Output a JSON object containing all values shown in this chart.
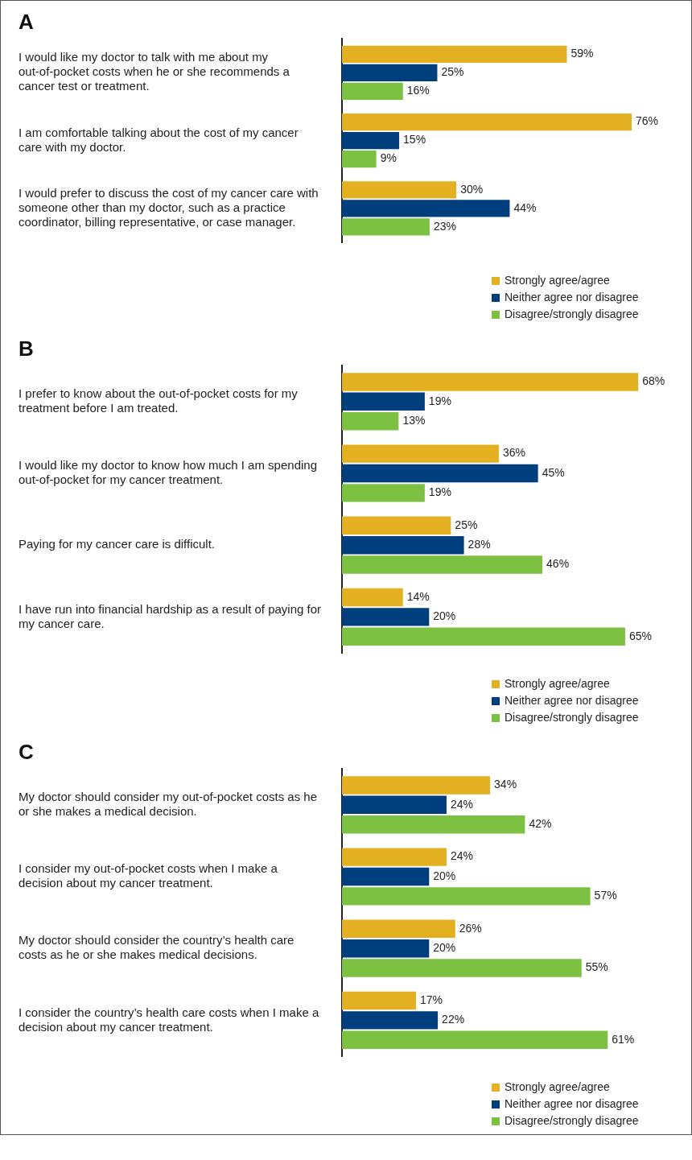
{
  "chart_data": [
    {
      "type": "bar",
      "orientation": "horizontal",
      "title": "A",
      "categories": [
        "I would like my doctor to talk with me about my out-of-pocket costs when he or she recommends a cancer test or treatment.",
        "I am comfortable talking about the cost of my cancer care with my doctor.",
        "I would prefer to discuss the cost of my cancer care with someone other than my doctor, such as a practice coordinator, billing representative, or case manager."
      ],
      "tick_labels": "y",
      "grid": false,
      "legend": "bottom right",
      "series": [
        {
          "name": "Strongly agree/agree",
          "color": "#e3b022",
          "values": [
            59,
            76,
            30
          ],
          "value_labels": [
            "59%",
            "76%",
            "30%"
          ]
        },
        {
          "name": "Neither agree nor disagree",
          "color": "#003f7d",
          "values": [
            25,
            15,
            44
          ],
          "value_labels": [
            "25%",
            "15%",
            "44%"
          ]
        },
        {
          "name": "Disagree/strongly disagree",
          "color": "#7dc142",
          "values": [
            16,
            9,
            23
          ],
          "value_labels": [
            "16%",
            "9%",
            "23%"
          ]
        }
      ]
    },
    {
      "type": "bar",
      "orientation": "horizontal",
      "title": "B",
      "categories": [
        "I prefer to know about the out-of-pocket costs for my treatment before I am treated.",
        "I would like my doctor to know how much I am spending out-of-pocket for my cancer treatment.",
        "Paying for my cancer care is difficult.",
        "I have run into financial hardship as a result of paying for my cancer care."
      ],
      "tick_labels": "y",
      "grid": false,
      "legend": "bottom right",
      "series": [
        {
          "name": "Strongly agree/agree",
          "color": "#e3b022",
          "values": [
            68,
            36,
            25,
            14
          ],
          "value_labels": [
            "68%",
            "36%",
            "25%",
            "14%"
          ]
        },
        {
          "name": "Neither agree nor disagree",
          "color": "#003f7d",
          "values": [
            19,
            45,
            28,
            20
          ],
          "value_labels": [
            "19%",
            "45%",
            "28%",
            "20%"
          ]
        },
        {
          "name": "Disagree/strongly disagree",
          "color": "#7dc142",
          "values": [
            13,
            19,
            46,
            65
          ],
          "value_labels": [
            "13%",
            "19%",
            "46%",
            "65%"
          ]
        }
      ]
    },
    {
      "type": "bar",
      "orientation": "horizontal",
      "title": "C",
      "categories": [
        "My doctor should consider my out-of-pocket costs as he or she makes a medical decision.",
        "I consider my out-of-pocket costs when I make a decision about my cancer treatment.",
        "My doctor should consider the country’s health care costs as he or she makes medical decisions.",
        "I consider the country’s health care costs when I make a decision about my cancer treatment."
      ],
      "tick_labels": "y",
      "grid": false,
      "legend": "bottom right",
      "series": [
        {
          "name": "Strongly agree/agree",
          "color": "#e3b022",
          "values": [
            34,
            24,
            26,
            17
          ],
          "value_labels": [
            "34%",
            "24%",
            "26%",
            "17%"
          ]
        },
        {
          "name": "Neither agree nor disagree",
          "color": "#003f7d",
          "values": [
            24,
            20,
            20,
            22
          ],
          "value_labels": [
            "24%",
            "20%",
            "20%",
            "22%"
          ]
        },
        {
          "name": "Disagree/strongly disagree",
          "color": "#7dc142",
          "values": [
            42,
            57,
            55,
            61
          ],
          "value_labels": [
            "42%",
            "57%",
            "55%",
            "61%"
          ]
        }
      ]
    }
  ]
}
